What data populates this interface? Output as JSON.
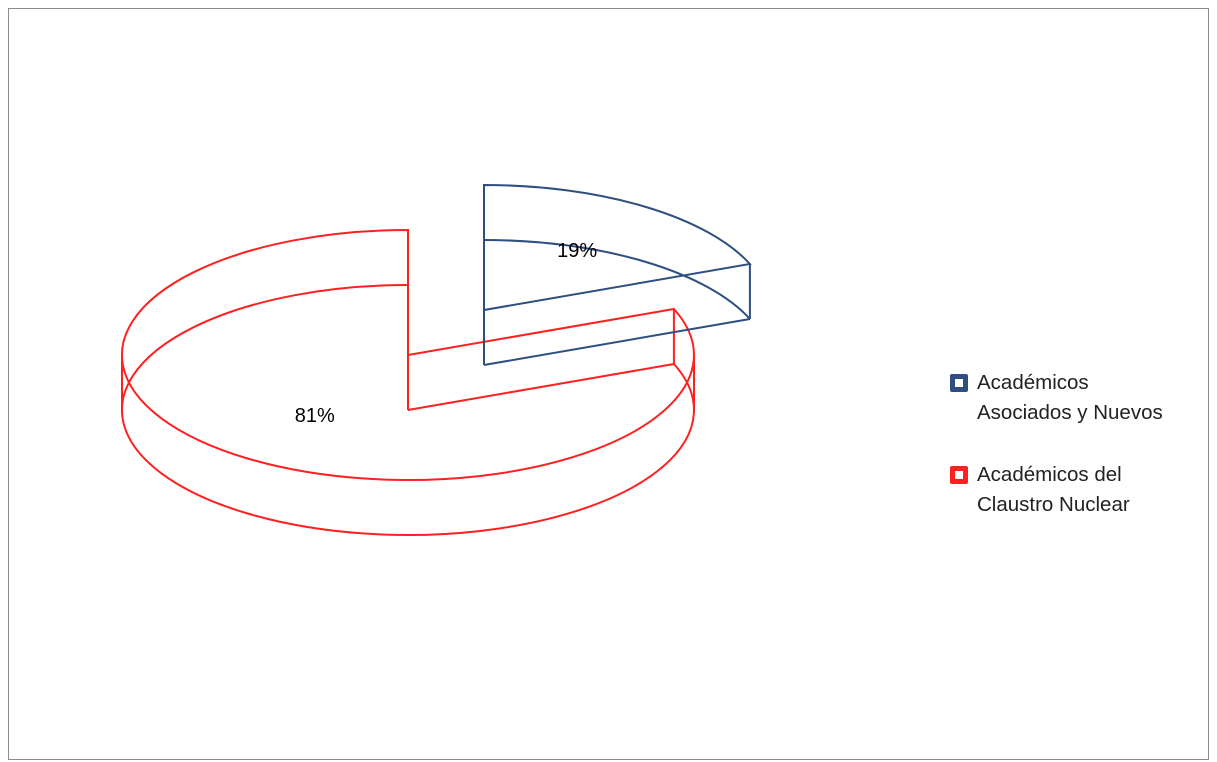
{
  "chart_data": {
    "type": "pie",
    "title": "",
    "categories": [
      "Académicos Asociados y Nuevos",
      "Académicos del Claustro Nuclear"
    ],
    "values": [
      19,
      81
    ],
    "labels": [
      "19%",
      "81%"
    ],
    "colors": [
      "#2e4f80",
      "#ff2020"
    ],
    "style": "3d-exploded-outline",
    "legend_position": "right"
  },
  "legend": {
    "items": [
      {
        "line1": "Académicos",
        "line2": "Asociados y Nuevos",
        "color": "#2e4f80"
      },
      {
        "line1": "Académicos del",
        "line2": "Claustro Nuclear",
        "color": "#ff2020"
      }
    ]
  }
}
